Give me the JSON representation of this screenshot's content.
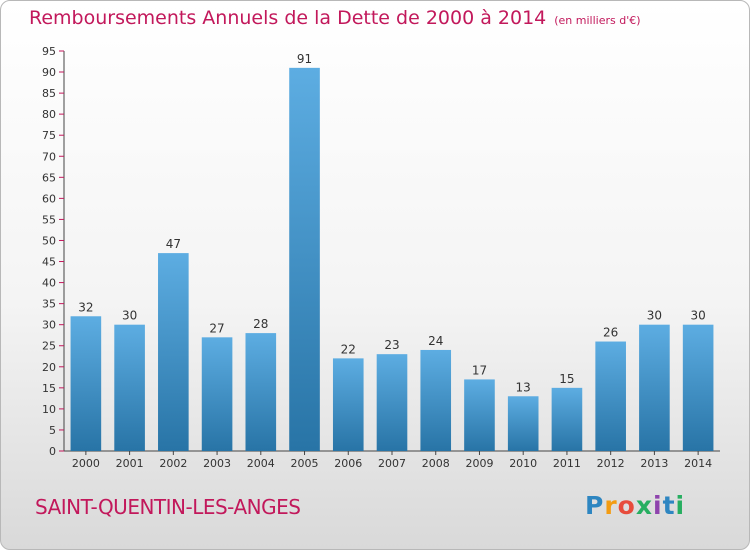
{
  "title": "Remboursements Annuels de la Dette de 2000 à 2014",
  "subtitle": "(en milliers d'€)",
  "commune": "SAINT-QUENTIN-LES-ANGES",
  "logo": {
    "text": "Proxiti",
    "letters": [
      "P",
      "r",
      "o",
      "x",
      "i",
      "t",
      "i"
    ]
  },
  "colors": {
    "title": "#c2185b",
    "bar_light": "#5dade2",
    "bar_dark": "#2874a6",
    "axis_accent": "#c2185b"
  },
  "chart_data": {
    "type": "bar",
    "title": "Remboursements Annuels de la Dette de 2000 à 2014",
    "xlabel": "",
    "ylabel": "",
    "ylim": [
      0,
      95
    ],
    "yticks": [
      0,
      5,
      10,
      15,
      20,
      25,
      30,
      35,
      40,
      45,
      50,
      55,
      60,
      65,
      70,
      75,
      80,
      85,
      90,
      95
    ],
    "grid": false,
    "categories": [
      "2000",
      "2001",
      "2002",
      "2003",
      "2004",
      "2005",
      "2006",
      "2007",
      "2008",
      "2009",
      "2010",
      "2011",
      "2012",
      "2013",
      "2014"
    ],
    "values": [
      32,
      30,
      47,
      27,
      28,
      91,
      22,
      23,
      24,
      17,
      13,
      15,
      26,
      30,
      30
    ]
  }
}
